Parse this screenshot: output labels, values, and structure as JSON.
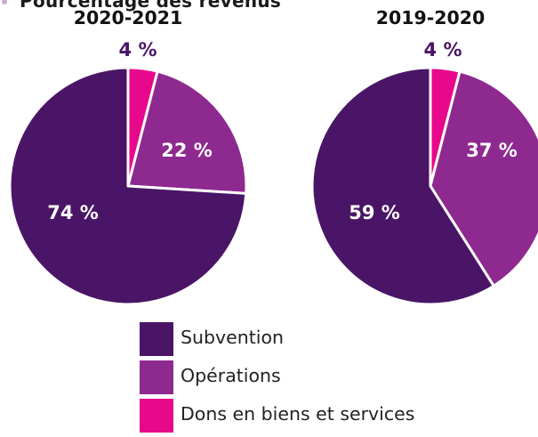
{
  "header_fragment": "Pourcentage des revenus",
  "colors": {
    "subvention": "#4a1566",
    "operations": "#8e2990",
    "dons": "#e8088c",
    "label_dark": "#4a1566",
    "label_white": "#ffffff"
  },
  "legend": [
    {
      "label": "Subvention",
      "color": "#4a1566"
    },
    {
      "label": "Opérations",
      "color": "#8e2990"
    },
    {
      "label": "Dons en biens et services",
      "color": "#e8088c"
    }
  ],
  "chart_data": [
    {
      "type": "pie",
      "title": "2020-2021",
      "slices": [
        {
          "name": "Dons en biens et services",
          "value": 4,
          "label": "4 %"
        },
        {
          "name": "Opérations",
          "value": 22,
          "label": "22 %"
        },
        {
          "name": "Subvention",
          "value": 74,
          "label": "74 %"
        }
      ]
    },
    {
      "type": "pie",
      "title": "2019-2020",
      "slices": [
        {
          "name": "Dons en biens et services",
          "value": 4,
          "label": "4 %"
        },
        {
          "name": "Opérations",
          "value": 37,
          "label": "37 %"
        },
        {
          "name": "Subvention",
          "value": 59,
          "label": "59 %"
        }
      ]
    }
  ]
}
